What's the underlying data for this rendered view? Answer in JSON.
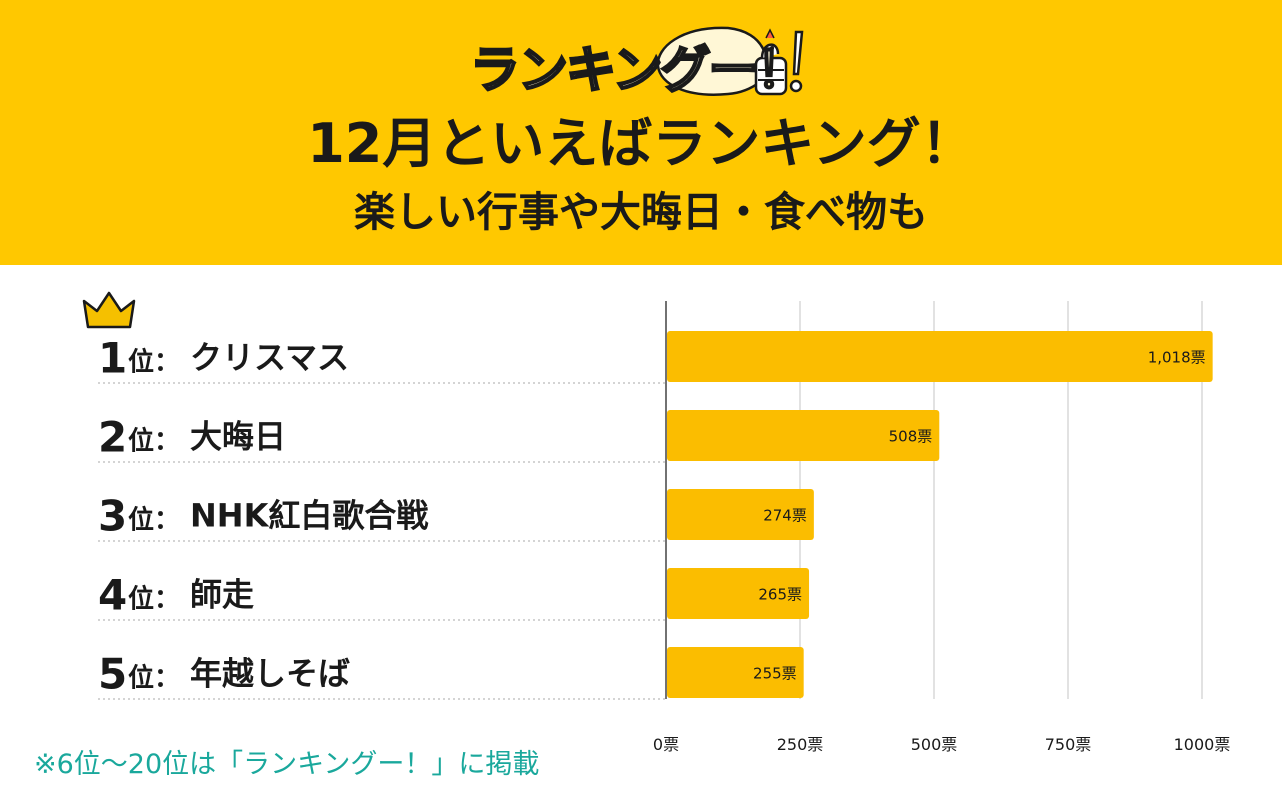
{
  "header": {
    "logo_text": "ランキングー！",
    "title": "12月といえばランキング！",
    "subtitle": "楽しい行事や大晦日・食べ物も"
  },
  "colors": {
    "header_bg": "#ffc800",
    "bar": "#fbbd00",
    "note": "#1aa89c",
    "crown": "#f5c000"
  },
  "chart_data": {
    "type": "bar",
    "orientation": "horizontal",
    "rank_suffix": "位：",
    "categories": [
      "クリスマス",
      "大晦日",
      "NHK紅白歌合戦",
      "師走",
      "年越しそば"
    ],
    "ranks": [
      "1",
      "2",
      "3",
      "4",
      "5"
    ],
    "values": [
      1018,
      508,
      274,
      265,
      255
    ],
    "value_labels": [
      "1,018票",
      "508票",
      "274票",
      "265票",
      "255票"
    ],
    "x_ticks": [
      0,
      250,
      500,
      750,
      1000
    ],
    "x_tick_labels": [
      "0票",
      "250票",
      "500票",
      "750票",
      "1000票"
    ],
    "xlim": [
      0,
      1000
    ],
    "grid": true,
    "legend": "none"
  },
  "footer": {
    "note": "※6位〜20位は「ランキングー！」に掲載"
  }
}
